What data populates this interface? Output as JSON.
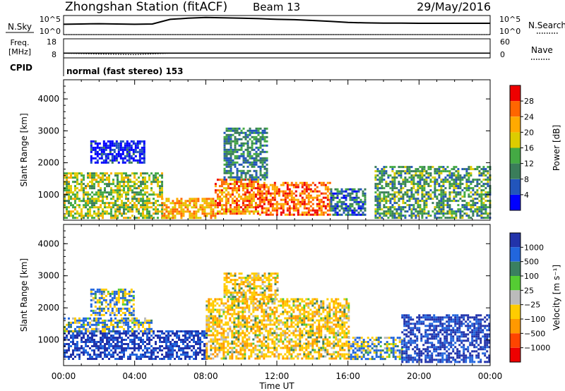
{
  "header": {
    "station": "Zhongshan Station (fitACF)",
    "beam": "Beam 13",
    "date": "29/May/2016"
  },
  "top_panels": {
    "nsky_label": "N.Sky",
    "nsearch_label": "N.Search",
    "left_ticks": [
      "10^5",
      "10^0"
    ],
    "right_ticks": [
      "10^5",
      "10^0"
    ],
    "freq_label_line1": "Freq.",
    "freq_label_line2": "[MHz]",
    "freq_ticks": [
      "18",
      "8"
    ],
    "nave_label": "Nave",
    "nave_ticks": [
      "60",
      "0"
    ],
    "cpid_label": "CPID",
    "cpid_text": "normal (fast stereo) 153"
  },
  "chart_data": [
    {
      "type": "line",
      "title": "Zhongshan Station (fitACF)",
      "ylabel": "N.Sky",
      "y2label": "N.Search",
      "yscale": "log",
      "ylim": [
        1,
        100000
      ],
      "x": [
        "00:00",
        "01:00",
        "02:00",
        "03:00",
        "04:00",
        "05:00",
        "06:00",
        "07:00",
        "08:00",
        "09:00",
        "10:00",
        "11:00",
        "12:00",
        "13:00",
        "14:00",
        "15:00",
        "16:00",
        "17:00",
        "18:00",
        "19:00",
        "20:00",
        "21:00",
        "22:00",
        "23:00",
        "24:00"
      ],
      "series": [
        {
          "name": "N.Sky",
          "values": [
            500,
            600,
            700,
            600,
            500,
            600,
            10000,
            20000,
            30000,
            25000,
            20000,
            15000,
            10000,
            8000,
            5000,
            3000,
            1500,
            1200,
            1000,
            1000,
            900,
            900,
            900,
            900,
            900
          ]
        },
        {
          "name": "N.Search",
          "values": [
            1,
            1,
            1,
            1,
            1,
            1,
            1,
            1,
            1,
            1,
            1,
            1,
            1,
            1,
            1,
            1,
            1,
            1,
            1,
            1,
            1,
            1,
            1,
            1,
            1
          ]
        }
      ]
    },
    {
      "type": "line",
      "ylabel": "Freq. [MHz]",
      "y2label": "Nave",
      "ylim": [
        8,
        18
      ],
      "y2lim": [
        0,
        60
      ],
      "x": [
        "00:00",
        "02:00",
        "04:00",
        "06:00",
        "08:00",
        "10:00",
        "12:00",
        "14:00",
        "16:00",
        "18:00",
        "20:00",
        "22:00",
        "24:00"
      ],
      "series": [
        {
          "name": "Freq.",
          "values": [
            10.5,
            10.5,
            10.5,
            10.5,
            10.5,
            10.5,
            10.5,
            10.5,
            10.5,
            10.5,
            10.5,
            10.5,
            10.5
          ]
        },
        {
          "name": "Nave",
          "values": [
            15,
            12,
            10,
            15,
            15,
            15,
            15,
            15,
            15,
            15,
            15,
            15,
            15
          ]
        }
      ]
    },
    {
      "type": "heatmap",
      "title": "Power",
      "xlabel": "",
      "ylabel": "Slant Range [km]",
      "xlim_hours": [
        0,
        24
      ],
      "x_ticks": [
        "00:00",
        "04:00",
        "08:00",
        "12:00",
        "16:00",
        "20:00",
        "00:00"
      ],
      "ylim": [
        200,
        4600
      ],
      "y_ticks": [
        "1000",
        "2000",
        "3000",
        "4000"
      ],
      "colorbar": {
        "label": "Power [dB]",
        "ticks": [
          "4",
          "8",
          "12",
          "16",
          "20",
          "24",
          "28"
        ],
        "range": [
          0,
          30
        ]
      },
      "value_bins": [
        3,
        6,
        10,
        14,
        18,
        22,
        26,
        30
      ],
      "regions": [
        {
          "t": [
            0.0,
            5.5
          ],
          "r": [
            300,
            1700
          ],
          "level": 18
        },
        {
          "t": [
            5.5,
            8.5
          ],
          "r": [
            300,
            900
          ],
          "level": 24
        },
        {
          "t": [
            8.5,
            11.0
          ],
          "r": [
            400,
            1500
          ],
          "level": 26
        },
        {
          "t": [
            9.0,
            11.5
          ],
          "r": [
            1500,
            3100
          ],
          "level": 12
        },
        {
          "t": [
            11.0,
            15.0
          ],
          "r": [
            400,
            1400
          ],
          "level": 28
        },
        {
          "t": [
            15.0,
            17.0
          ],
          "r": [
            400,
            1200
          ],
          "level": 10
        },
        {
          "t": [
            17.5,
            24.0
          ],
          "r": [
            300,
            1900
          ],
          "level": 14
        },
        {
          "t": [
            1.5,
            4.5
          ],
          "r": [
            2000,
            2700
          ],
          "level": 5
        }
      ]
    },
    {
      "type": "heatmap",
      "title": "Velocity",
      "xlabel": "Time UT",
      "ylabel": "Slant Range [km]",
      "xlim_hours": [
        0,
        24
      ],
      "x_ticks": [
        "00:00",
        "04:00",
        "08:00",
        "12:00",
        "16:00",
        "20:00",
        "00:00"
      ],
      "ylim": [
        200,
        4600
      ],
      "y_ticks": [
        "1000",
        "2000",
        "3000",
        "4000"
      ],
      "colorbar": {
        "label": "Velocity [m s⁻¹]",
        "ticks": [
          "1000",
          "500",
          "100",
          "25",
          "−25",
          "−100",
          "−500",
          "−1000"
        ]
      },
      "value_bins": [
        1000,
        500,
        100,
        25,
        -25,
        -100,
        -500,
        -1000,
        -1500
      ],
      "regions": [
        {
          "t": [
            0.0,
            8.0
          ],
          "r": [
            400,
            1300
          ],
          "level": 600
        },
        {
          "t": [
            0.0,
            5.0
          ],
          "r": [
            1300,
            1700
          ],
          "level": 50
        },
        {
          "t": [
            8.0,
            16.0
          ],
          "r": [
            400,
            2300
          ],
          "level": -300
        },
        {
          "t": [
            9.0,
            12.0
          ],
          "r": [
            2300,
            3100
          ],
          "level": -300
        },
        {
          "t": [
            16.0,
            19.0
          ],
          "r": [
            400,
            1100
          ],
          "level": 100
        },
        {
          "t": [
            19.0,
            24.0
          ],
          "r": [
            300,
            1800
          ],
          "level": 600
        },
        {
          "t": [
            1.5,
            4.0
          ],
          "r": [
            1800,
            2600
          ],
          "level": 60
        }
      ]
    }
  ],
  "colors": {
    "power": [
      "#0000ff",
      "#2255bb",
      "#3a7d5a",
      "#44aa44",
      "#ddcc00",
      "#ffaa00",
      "#ff6600",
      "#ee0000"
    ],
    "velocity": [
      "#2233aa",
      "#2266dd",
      "#3a8060",
      "#55cc33",
      "#bbbbbb",
      "#ffcc00",
      "#ff9900",
      "#ff4400",
      "#ee0000"
    ]
  }
}
